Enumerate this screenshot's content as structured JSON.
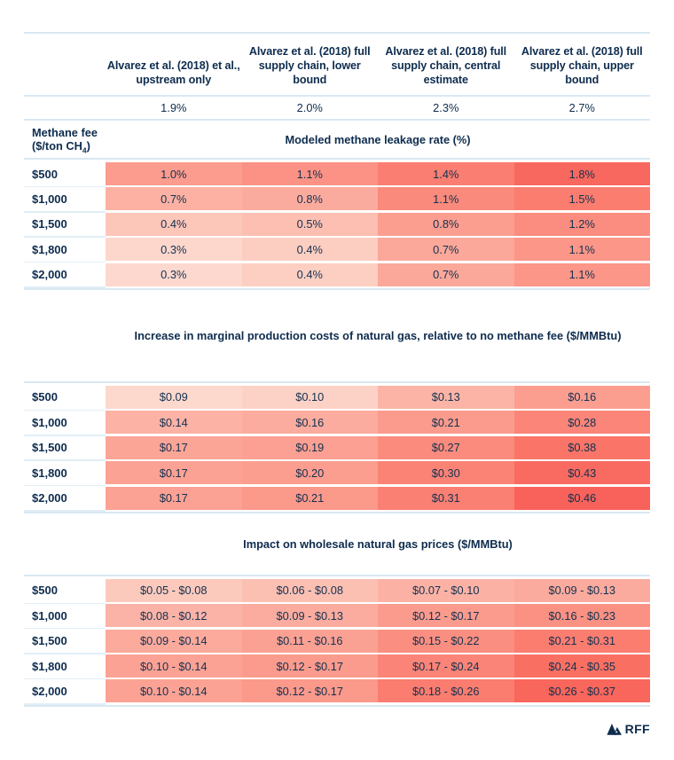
{
  "colors": {
    "text": "#0E2C4E",
    "rule": "#D9E8F2",
    "background": "#FFFFFF",
    "scale_low": "#FDD9CE",
    "scale_high": "#F9625A"
  },
  "columns": [
    {
      "title": "Alvarez et al. (2018) et al., upstream only",
      "leakage_rate": "1.9%"
    },
    {
      "title": "Alvarez et al. (2018) full supply chain, lower bound",
      "leakage_rate": "2.0%"
    },
    {
      "title": "Alvarez et al. (2018) full supply chain, central estimate",
      "leakage_rate": "2.3%"
    },
    {
      "title": "Alvarez et al. (2018) full supply chain, upper bound",
      "leakage_rate": "2.7%"
    }
  ],
  "fee_axis": {
    "line1": "Methane fee",
    "line2_pre": "($/ton CH",
    "sub": "4",
    "line2_post": ")"
  },
  "tables": [
    {
      "title": "Modeled methane leakage rate (%)",
      "rows": [
        {
          "label": "$500",
          "cells": [
            {
              "text": "1.0%",
              "color": "#FB9C8E"
            },
            {
              "text": "1.1%",
              "color": "#FB9285"
            },
            {
              "text": "1.4%",
              "color": "#FA7E71"
            },
            {
              "text": "1.8%",
              "color": "#F9685E"
            }
          ]
        },
        {
          "label": "$1,000",
          "cells": [
            {
              "text": "0.7%",
              "color": "#FCB1A3"
            },
            {
              "text": "0.8%",
              "color": "#FBAB9D"
            },
            {
              "text": "1.1%",
              "color": "#FA8A7C"
            },
            {
              "text": "1.5%",
              "color": "#FA7D70"
            }
          ]
        },
        {
          "label": "$1,500",
          "cells": [
            {
              "text": "0.4%",
              "color": "#FCC6B9"
            },
            {
              "text": "0.5%",
              "color": "#FCBFB1"
            },
            {
              "text": "0.8%",
              "color": "#FB9E90"
            },
            {
              "text": "1.2%",
              "color": "#FA8D80"
            }
          ]
        },
        {
          "label": "$1,800",
          "cells": [
            {
              "text": "0.3%",
              "color": "#FDD7CC"
            },
            {
              "text": "0.4%",
              "color": "#FCCEC1"
            },
            {
              "text": "0.7%",
              "color": "#FBA89A"
            },
            {
              "text": "1.1%",
              "color": "#FB9688"
            }
          ]
        },
        {
          "label": "$2,000",
          "cells": [
            {
              "text": "0.3%",
              "color": "#FDD8CE"
            },
            {
              "text": "0.4%",
              "color": "#FCCFC2"
            },
            {
              "text": "0.7%",
              "color": "#FBA89A"
            },
            {
              "text": "1.1%",
              "color": "#FB9688"
            }
          ]
        }
      ]
    },
    {
      "title": "Increase in marginal production costs of natural gas, relative to no methane fee ($/MMBtu)",
      "rows": [
        {
          "label": "$500",
          "cells": [
            {
              "text": "$0.09",
              "color": "#FDD8CD"
            },
            {
              "text": "$0.10",
              "color": "#FDD2C6"
            },
            {
              "text": "$0.13",
              "color": "#FCB4A6"
            },
            {
              "text": "$0.16",
              "color": "#FB9E90"
            }
          ]
        },
        {
          "label": "$1,000",
          "cells": [
            {
              "text": "$0.14",
              "color": "#FCB2A5"
            },
            {
              "text": "$0.16",
              "color": "#FBAC9E"
            },
            {
              "text": "$0.21",
              "color": "#FB9B8D"
            },
            {
              "text": "$0.28",
              "color": "#FA8578"
            }
          ]
        },
        {
          "label": "$1,500",
          "cells": [
            {
              "text": "$0.17",
              "color": "#FBA597"
            },
            {
              "text": "$0.19",
              "color": "#FBA092"
            },
            {
              "text": "$0.27",
              "color": "#FA8B7D"
            },
            {
              "text": "$0.38",
              "color": "#FA7568"
            }
          ]
        },
        {
          "label": "$1,800",
          "cells": [
            {
              "text": "$0.17",
              "color": "#FBA294"
            },
            {
              "text": "$0.20",
              "color": "#FB9D8F"
            },
            {
              "text": "$0.30",
              "color": "#FA8376"
            },
            {
              "text": "$0.43",
              "color": "#F96A60"
            }
          ]
        },
        {
          "label": "$2,000",
          "cells": [
            {
              "text": "$0.17",
              "color": "#FBA294"
            },
            {
              "text": "$0.21",
              "color": "#FB998B"
            },
            {
              "text": "$0.31",
              "color": "#FA8073"
            },
            {
              "text": "$0.46",
              "color": "#F9625A"
            }
          ]
        }
      ]
    },
    {
      "title": "Impact on wholesale natural gas prices ($/MMBtu)",
      "rows": [
        {
          "label": "$500",
          "cells": [
            {
              "text": "$0.05 - $0.08",
              "color": "#FCC9BD"
            },
            {
              "text": "$0.06 - $0.08",
              "color": "#FCC0B3"
            },
            {
              "text": "$0.07 - $0.10",
              "color": "#FBB2A5"
            },
            {
              "text": "$0.09 - $0.13",
              "color": "#FBAB9E"
            }
          ]
        },
        {
          "label": "$1,000",
          "cells": [
            {
              "text": "$0.08 - $0.12",
              "color": "#FBB3A7"
            },
            {
              "text": "$0.09 - $0.13",
              "color": "#FBAC9F"
            },
            {
              "text": "$0.12 - $0.17",
              "color": "#FB9B8D"
            },
            {
              "text": "$0.16 - $0.23",
              "color": "#FA9183"
            }
          ]
        },
        {
          "label": "$1,500",
          "cells": [
            {
              "text": "$0.09 - $0.14",
              "color": "#FBAA9C"
            },
            {
              "text": "$0.11 - $0.16",
              "color": "#FBA193"
            },
            {
              "text": "$0.15 - $0.22",
              "color": "#FA8F81"
            },
            {
              "text": "$0.21 - $0.31",
              "color": "#FA7D70"
            }
          ]
        },
        {
          "label": "$1,800",
          "cells": [
            {
              "text": "$0.10 - $0.14",
              "color": "#FBA294"
            },
            {
              "text": "$0.12 - $0.17",
              "color": "#FB9B8D"
            },
            {
              "text": "$0.17 - $0.24",
              "color": "#FA8477"
            },
            {
              "text": "$0.24 - $0.35",
              "color": "#F97063"
            }
          ]
        },
        {
          "label": "$2,000",
          "cells": [
            {
              "text": "$0.10 - $0.14",
              "color": "#FBA294"
            },
            {
              "text": "$0.12 - $0.17",
              "color": "#FB998B"
            },
            {
              "text": "$0.18 - $0.26",
              "color": "#FA7D70"
            },
            {
              "text": "$0.26 - $0.37",
              "color": "#F9665C"
            }
          ]
        }
      ]
    }
  ],
  "footer": {
    "logo_text": "RFF"
  },
  "chart_data": [
    {
      "type": "heatmap",
      "title": "Modeled methane leakage rate (%)",
      "unit": "%",
      "row_axis_label": "Methane fee ($/ton CH4)",
      "rows": [
        "$500",
        "$1,000",
        "$1,500",
        "$1,800",
        "$2,000"
      ],
      "columns": [
        "Alvarez et al. (2018) et al., upstream only",
        "Alvarez et al. (2018) full supply chain, lower bound",
        "Alvarez et al. (2018) full supply chain, central estimate",
        "Alvarez et al. (2018) full supply chain, upper bound"
      ],
      "column_leakage_rates_pct": [
        1.9,
        2.0,
        2.3,
        2.7
      ],
      "values": [
        [
          1.0,
          1.1,
          1.4,
          1.8
        ],
        [
          0.7,
          0.8,
          1.1,
          1.5
        ],
        [
          0.4,
          0.5,
          0.8,
          1.2
        ],
        [
          0.3,
          0.4,
          0.7,
          1.1
        ],
        [
          0.3,
          0.4,
          0.7,
          1.1
        ]
      ],
      "color_scale": {
        "low": "#FDD9CE",
        "high": "#F9625A"
      }
    },
    {
      "type": "heatmap",
      "title": "Increase in marginal production costs of natural gas, relative to no methane fee ($/MMBtu)",
      "unit": "$/MMBtu",
      "rows": [
        "$500",
        "$1,000",
        "$1,500",
        "$1,800",
        "$2,000"
      ],
      "values": [
        [
          0.09,
          0.1,
          0.13,
          0.16
        ],
        [
          0.14,
          0.16,
          0.21,
          0.28
        ],
        [
          0.17,
          0.19,
          0.27,
          0.38
        ],
        [
          0.17,
          0.2,
          0.3,
          0.43
        ],
        [
          0.17,
          0.21,
          0.31,
          0.46
        ]
      ],
      "color_scale": {
        "low": "#FDD9CE",
        "high": "#F9625A"
      }
    },
    {
      "type": "heatmap",
      "title": "Impact on wholesale natural gas prices ($/MMBtu)",
      "unit": "$/MMBtu",
      "rows": [
        "$500",
        "$1,000",
        "$1,500",
        "$1,800",
        "$2,000"
      ],
      "value_ranges": [
        [
          [
            0.05,
            0.08
          ],
          [
            0.06,
            0.08
          ],
          [
            0.07,
            0.1
          ],
          [
            0.09,
            0.13
          ]
        ],
        [
          [
            0.08,
            0.12
          ],
          [
            0.09,
            0.13
          ],
          [
            0.12,
            0.17
          ],
          [
            0.16,
            0.23
          ]
        ],
        [
          [
            0.09,
            0.14
          ],
          [
            0.11,
            0.16
          ],
          [
            0.15,
            0.22
          ],
          [
            0.21,
            0.31
          ]
        ],
        [
          [
            0.1,
            0.14
          ],
          [
            0.12,
            0.17
          ],
          [
            0.17,
            0.24
          ],
          [
            0.24,
            0.35
          ]
        ],
        [
          [
            0.1,
            0.14
          ],
          [
            0.12,
            0.17
          ],
          [
            0.18,
            0.26
          ],
          [
            0.26,
            0.37
          ]
        ]
      ],
      "color_scale": {
        "low": "#FDD9CE",
        "high": "#F9625A"
      }
    }
  ]
}
